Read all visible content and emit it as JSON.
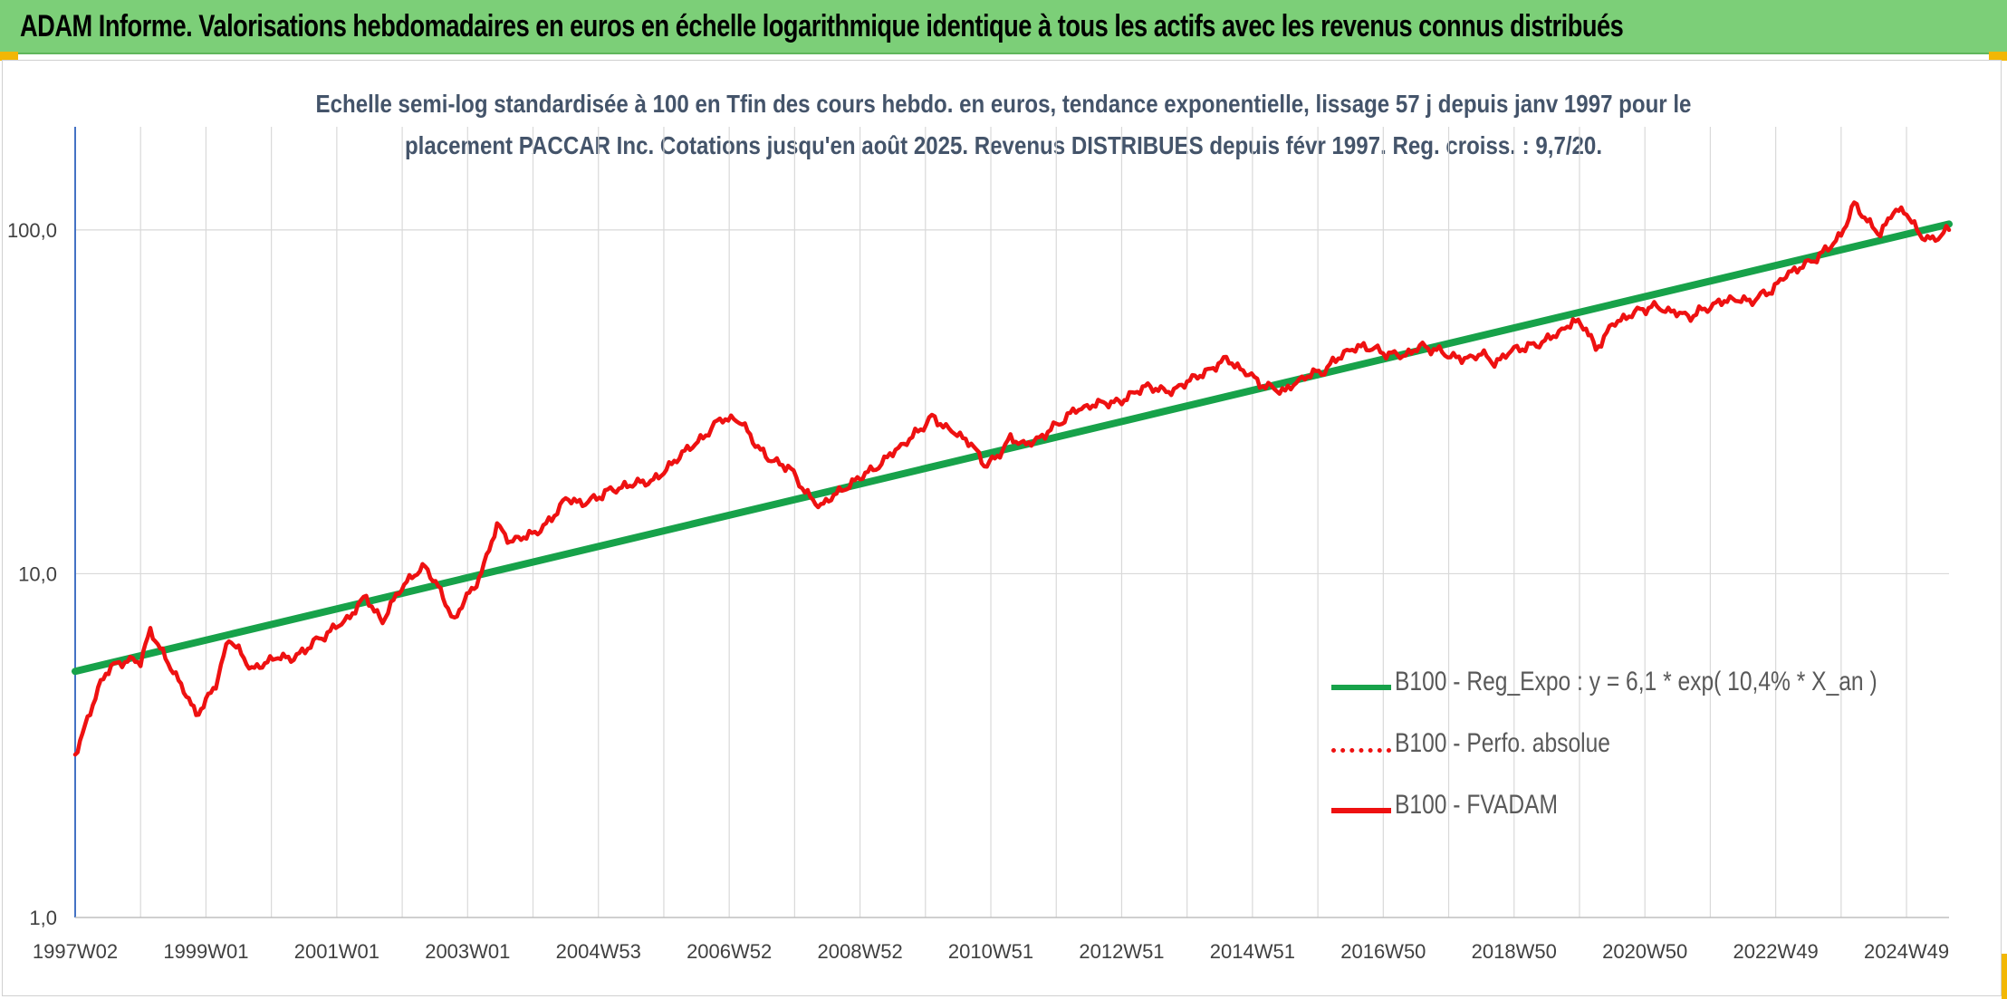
{
  "banner": {
    "title": "ADAM Informe. Valorisations hebdomadaires en euros en échelle logarithmique identique à tous les actifs avec les revenus connus distribués"
  },
  "colors": {
    "banner_bg": "#7ccf78",
    "regression": "#17a24a",
    "fvadam": "#ee1111",
    "perfo": "#ee1111",
    "subtitle": "#44546a"
  },
  "chart_data": {
    "type": "line",
    "title_lines": [
      "Echelle semi-log standardisée à 100 en Tfin des cours hebdo. en euros, tendance exponentielle, lissage 57 j depuis janv 1997 pour le",
      "placement PACCAR Inc. Cotations jusqu'en août 2025. Revenus DISTRIBUES depuis févr 1997. Reg. croiss. : 9,7/20."
    ],
    "y_scale": "log",
    "ylim": [
      1,
      100
    ],
    "y_ticks": [
      "1,0",
      "10,0",
      "100,0"
    ],
    "x_range_years": [
      1997.0,
      2025.65
    ],
    "x_tick_labels": [
      "1997W02",
      "1999W01",
      "2001W01",
      "2003W01",
      "2004W53",
      "2006W52",
      "2008W52",
      "2010W51",
      "2012W51",
      "2014W51",
      "2016W50",
      "2018W50",
      "2020W50",
      "2022W49",
      "2024W49"
    ],
    "x_tick_years": [
      1997.0,
      1999.0,
      2001.0,
      2003.0,
      2005.0,
      2007.0,
      2009.0,
      2011.0,
      2013.0,
      2015.0,
      2017.0,
      2019.0,
      2021.0,
      2023.0,
      2025.0
    ],
    "grid": "vertical lines at half-year steps, horizontal at decades",
    "legend_position": "right, lower-middle",
    "series": [
      {
        "name": "B100 - Reg_Expo : y = 6,1 * exp( 10,4% *  X_an )",
        "style": "solid-thick",
        "x": [
          1997.0,
          2025.65
        ],
        "y": [
          5.2,
          104
        ]
      },
      {
        "name": "B100 - Perfo. absolue",
        "style": "dotted",
        "x": [],
        "y": []
      },
      {
        "name": "B100 - FVADAM",
        "style": "solid",
        "x": [
          1997.0,
          1997.15,
          1997.35,
          1997.55,
          1997.8,
          1998.0,
          1998.15,
          1998.3,
          1998.5,
          1998.7,
          1998.85,
          1999.0,
          1999.15,
          1999.35,
          1999.5,
          1999.7,
          1999.9,
          2000.1,
          2000.3,
          2000.6,
          2000.9,
          2001.2,
          2001.45,
          2001.7,
          2001.95,
          2002.15,
          2002.35,
          2002.55,
          2002.7,
          2002.8,
          2002.95,
          2003.1,
          2003.25,
          2003.45,
          2003.65,
          2003.9,
          2004.2,
          2004.5,
          2004.8,
          2005.1,
          2005.4,
          2005.8,
          2006.2,
          2006.6,
          2006.9,
          2007.2,
          2007.4,
          2007.6,
          2007.9,
          2008.2,
          2008.4,
          2008.6,
          2008.8,
          2009.0,
          2009.2,
          2009.5,
          2009.8,
          2010.1,
          2010.4,
          2010.7,
          2010.9,
          2011.1,
          2011.3,
          2011.5,
          2011.7,
          2012.0,
          2012.3,
          2012.6,
          2013.0,
          2013.4,
          2013.8,
          2014.2,
          2014.6,
          2014.9,
          2015.2,
          2015.5,
          2015.8,
          2016.1,
          2016.4,
          2016.7,
          2017.0,
          2017.3,
          2017.6,
          2017.9,
          2018.2,
          2018.5,
          2018.7,
          2019.0,
          2019.3,
          2019.6,
          2019.9,
          2020.1,
          2020.25,
          2020.5,
          2020.8,
          2021.1,
          2021.4,
          2021.7,
          2022.0,
          2022.3,
          2022.6,
          2022.9,
          2023.2,
          2023.5,
          2023.8,
          2024.0,
          2024.2,
          2024.4,
          2024.6,
          2024.8,
          2025.0,
          2025.2,
          2025.4,
          2025.65
        ],
        "y": [
          3.0,
          3.6,
          4.6,
          5.4,
          5.6,
          5.5,
          6.8,
          6.0,
          5.2,
          4.5,
          3.9,
          4.3,
          4.8,
          6.5,
          6.0,
          5.2,
          5.5,
          5.8,
          5.6,
          6.2,
          6.8,
          7.5,
          8.6,
          7.2,
          9.0,
          9.8,
          10.4,
          9.2,
          8.0,
          7.2,
          8.4,
          9.0,
          10.5,
          13.8,
          12.5,
          12.8,
          13.8,
          16.5,
          16.0,
          17.2,
          18.0,
          18.5,
          21.5,
          25.0,
          28.5,
          27.5,
          24.0,
          21.5,
          20.5,
          17.0,
          15.5,
          17.0,
          18.0,
          19.0,
          20.0,
          22.5,
          25.0,
          28.5,
          26.0,
          24.0,
          20.5,
          22.0,
          25.0,
          23.5,
          24.5,
          27.0,
          30.0,
          31.0,
          32.0,
          35.0,
          34.0,
          38.0,
          42.0,
          38.5,
          35.0,
          34.0,
          37.5,
          39.0,
          44.0,
          46.0,
          44.0,
          43.0,
          46.0,
          44.0,
          42.0,
          43.5,
          41.0,
          45.0,
          46.0,
          49.0,
          54.0,
          52.0,
          45.0,
          53.0,
          57.0,
          60.0,
          58.0,
          56.0,
          60.0,
          63.0,
          62.0,
          66.0,
          75.0,
          80.0,
          88.0,
          97.0,
          120.0,
          105.0,
          97.0,
          115.0,
          112.0,
          96.0,
          94.0,
          100.0
        ]
      }
    ]
  }
}
